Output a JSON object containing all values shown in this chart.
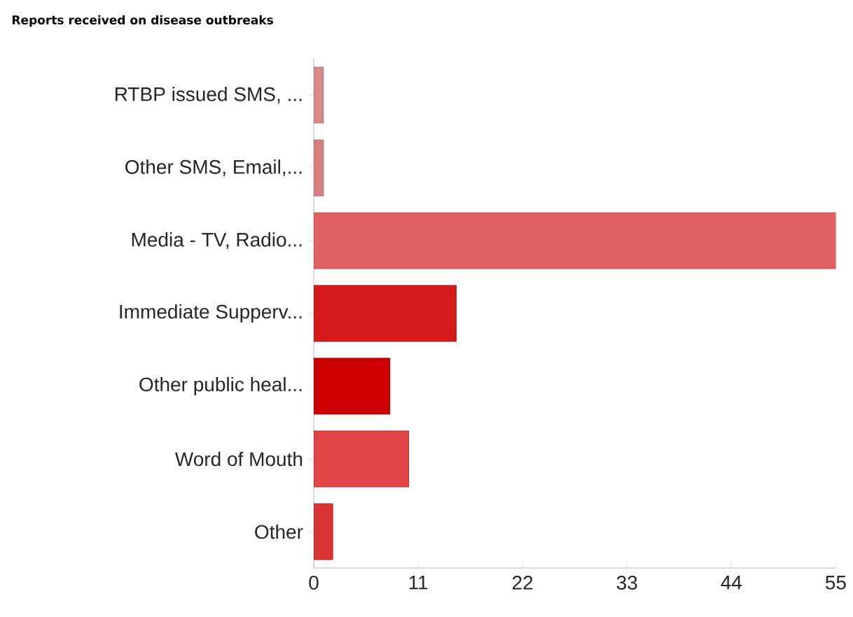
{
  "chart_data": {
    "type": "bar",
    "orientation": "horizontal",
    "title": "Reports received on disease outbreaks",
    "categories": [
      "RTBP issued SMS, ...",
      "Other SMS, Email,...",
      "Media - TV, Radio...",
      "Immediate Supperv...",
      "Other public heal...",
      "Word of Mouth",
      "Other"
    ],
    "values": [
      1,
      1,
      55,
      15,
      8,
      10,
      2
    ],
    "colors": [
      "#d98a8a",
      "#d98080",
      "#e06262",
      "#d41a1a",
      "#cc0000",
      "#e04444",
      "#d83434"
    ],
    "xlim": [
      0,
      55
    ],
    "xticks": [
      0,
      11,
      22,
      33,
      44,
      55
    ],
    "grid": false
  }
}
